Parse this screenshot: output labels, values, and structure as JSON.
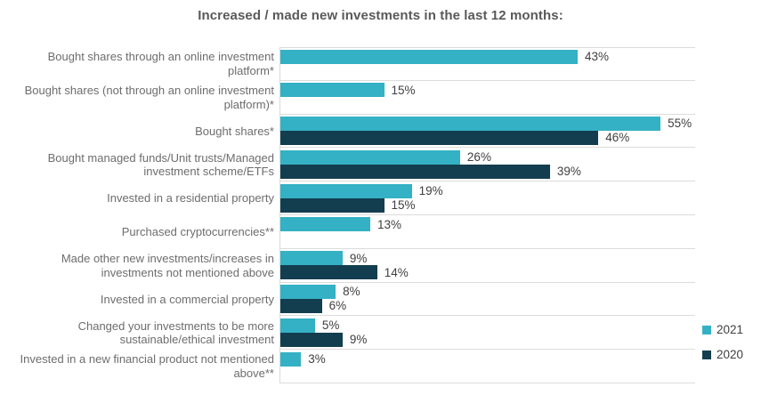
{
  "title": "Increased / made new investments in the last 12 months:",
  "colors": {
    "series_2021": "#34b1c4",
    "series_2020": "#133e4f",
    "gridline": "#dcdcdc",
    "axis_line": "#d9d9d9",
    "title_text": "#595959",
    "category_text": "#6d6d6d",
    "value_text": "#3f3f3f",
    "background": "#ffffff"
  },
  "legend": {
    "position": "right",
    "items": [
      {
        "label": "2021",
        "color": "#34b1c4"
      },
      {
        "label": "2020",
        "color": "#133e4f"
      }
    ]
  },
  "chart_data": {
    "type": "bar",
    "orientation": "horizontal",
    "title": "Increased / made new investments in the last 12 months:",
    "xlabel": "",
    "ylabel": "",
    "xlim": [
      0,
      60
    ],
    "grid": "row-separators",
    "legend_position": "right",
    "value_suffix": "%",
    "categories": [
      "Bought shares through an online investment platform*",
      "Bought shares (not through an online investment platform)*",
      "Bought shares*",
      "Bought managed funds/Unit trusts/Managed investment scheme/ETFs",
      "Invested in a residential property",
      "Purchased cryptocurrencies**",
      "Made other new investments/increases in investments not mentioned above",
      "Invested in a commercial property",
      "Changed your investments to be more sustainable/ethical investment",
      "Invested in a new financial product not mentioned above**"
    ],
    "series": [
      {
        "name": "2021",
        "color": "#34b1c4",
        "values": [
          43,
          15,
          55,
          26,
          19,
          13,
          9,
          8,
          5,
          3
        ]
      },
      {
        "name": "2020",
        "color": "#133e4f",
        "values": [
          null,
          null,
          46,
          39,
          15,
          null,
          14,
          6,
          9,
          null
        ]
      }
    ],
    "value_labels": {
      "2021": [
        "43%",
        "15%",
        "55%",
        "26%",
        "19%",
        "13%",
        "9%",
        "8%",
        "5%",
        "3%"
      ],
      "2020": [
        null,
        null,
        "46%",
        "39%",
        "15%",
        null,
        "14%",
        "6%",
        "9%",
        null
      ]
    }
  }
}
